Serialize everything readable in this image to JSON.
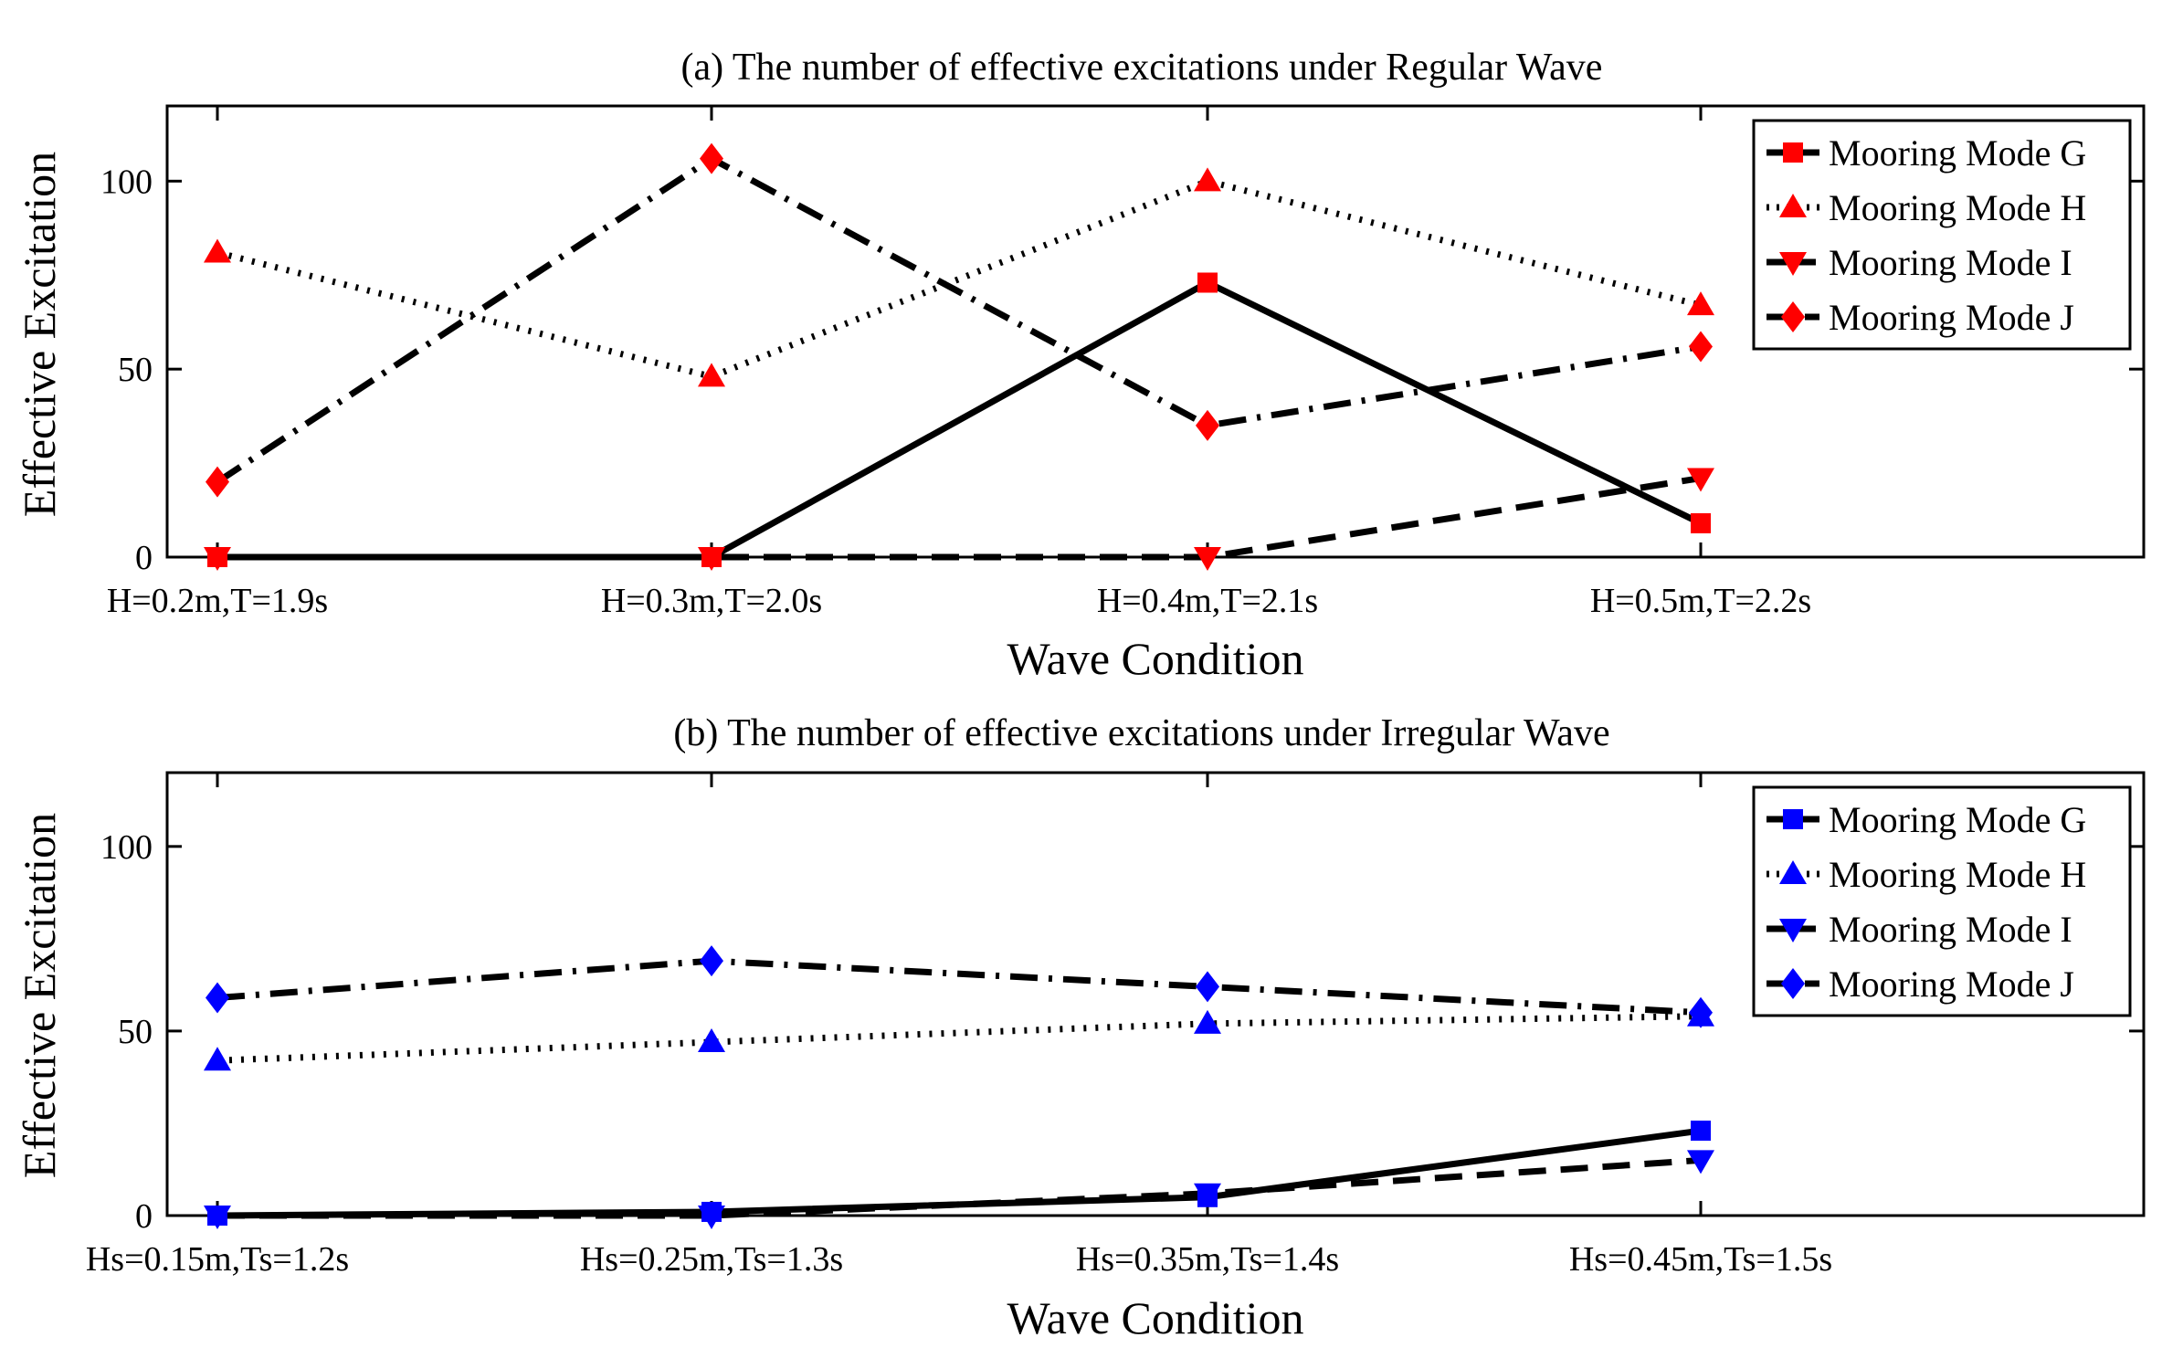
{
  "chart_data": [
    {
      "type": "line",
      "title": "(a) The number of effective excitations under Regular Wave",
      "xlabel": "Wave Condition",
      "ylabel": "Effective Excitation",
      "categories": [
        "H=0.2m,T=1.9s",
        "H=0.3m,T=2.0s",
        "H=0.4m,T=2.1s",
        "H=0.5m,T=2.2s"
      ],
      "ylim": [
        0,
        120
      ],
      "yticks": [
        0,
        50,
        100
      ],
      "marker_color": "#ff0000",
      "line_color": "#000000",
      "legend_location": "top-right",
      "series": [
        {
          "name": "Mooring Mode G",
          "values": [
            0,
            0,
            73,
            9
          ],
          "line": "solid",
          "marker": "square"
        },
        {
          "name": "Mooring Mode H",
          "values": [
            81,
            48,
            100,
            67
          ],
          "line": "dotted",
          "marker": "triangle-up"
        },
        {
          "name": "Mooring Mode I",
          "values": [
            0,
            0,
            0,
            21
          ],
          "line": "dashed",
          "marker": "triangle-down"
        },
        {
          "name": "Mooring Mode J",
          "values": [
            20,
            106,
            35,
            56
          ],
          "line": "dashdot",
          "marker": "diamond"
        }
      ]
    },
    {
      "type": "line",
      "title": "(b) The number of effective excitations under Irregular Wave",
      "xlabel": "Wave Condition",
      "ylabel": "Effective Excitation",
      "categories": [
        "Hs=0.15m,Ts=1.2s",
        "Hs=0.25m,Ts=1.3s",
        "Hs=0.35m,Ts=1.4s",
        "Hs=0.45m,Ts=1.5s"
      ],
      "ylim": [
        0,
        120
      ],
      "yticks": [
        0,
        50,
        100
      ],
      "marker_color": "#0000ff",
      "line_color": "#000000",
      "legend_location": "top-right",
      "series": [
        {
          "name": "Mooring Mode G",
          "values": [
            0,
            1,
            5,
            23
          ],
          "line": "solid",
          "marker": "square"
        },
        {
          "name": "Mooring Mode H",
          "values": [
            42,
            47,
            52,
            54
          ],
          "line": "dotted",
          "marker": "triangle-up"
        },
        {
          "name": "Mooring Mode I",
          "values": [
            0,
            0,
            6,
            15
          ],
          "line": "dashed",
          "marker": "triangle-down"
        },
        {
          "name": "Mooring Mode J",
          "values": [
            59,
            69,
            62,
            55
          ],
          "line": "dashdot",
          "marker": "diamond"
        }
      ]
    }
  ]
}
